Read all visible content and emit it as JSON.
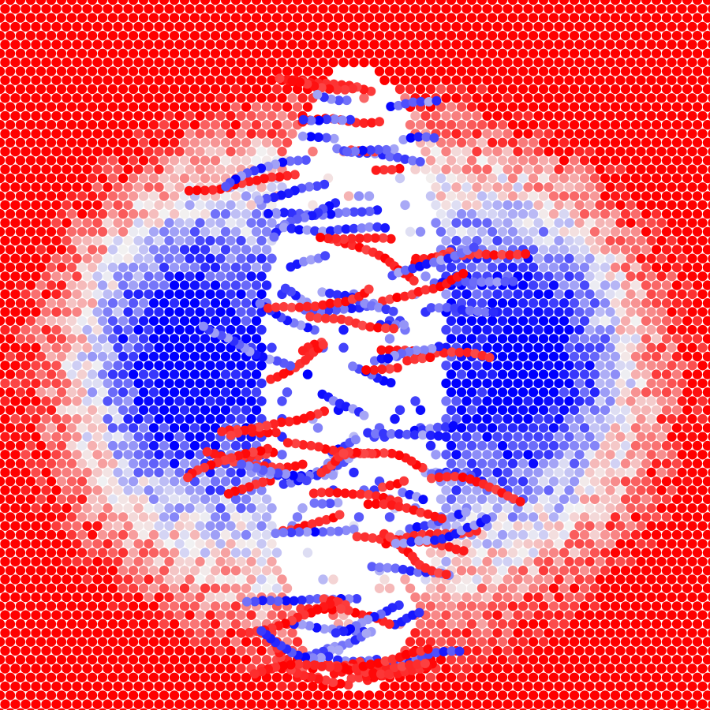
{
  "image": {
    "subject": "atomic-simulation-fracture-render",
    "colors": {
      "background": "#ffffff",
      "high": "#ff0000",
      "mid": "#f2f2f2",
      "low": "#0000ff"
    }
  }
}
